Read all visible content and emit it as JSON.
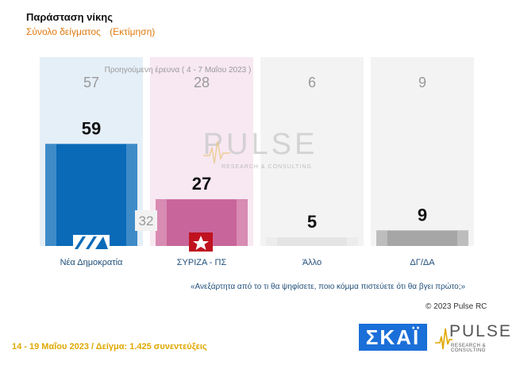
{
  "header": {
    "title": "Παράσταση νίκης",
    "subtitle": "Σύνολο δείγματος",
    "subtitle_note": "(Εκτίμηση)"
  },
  "chart_data": {
    "type": "bar",
    "categories": [
      "Νέα Δημοκρατία",
      "ΣΥΡΙΖΑ - ΠΣ",
      "Άλλο",
      "ΔΓ/ΔΑ"
    ],
    "series": [
      {
        "name": "Προηγούμενη έρευνα ( 4 - 7 Μαΐου 2023 )",
        "values": [
          57,
          28,
          6,
          9
        ]
      },
      {
        "name": "",
        "values": [
          59,
          27,
          5,
          9
        ]
      }
    ],
    "colors": [
      "#0a6ab8",
      "#c8659a",
      "#e4e4e4",
      "#a6a6a6"
    ],
    "background_colors": [
      "#e5eff8",
      "#f7e8f1",
      "#f3f3f3",
      "#f3f3f3"
    ],
    "bar_shade_colors": [
      "#3f8bc8",
      "#d88bb3",
      "#ececec",
      "#bdbdbd"
    ],
    "annotation": "32",
    "ylim": [
      0,
      100
    ],
    "legend_note": "Προηγούμενη έρευνα ( 4 - 7 Μαΐου 2023 )"
  },
  "watermark": {
    "word": "PULSE",
    "tagline": "RESEARCH & CONSULTING"
  },
  "question": "«Ανεξάρτητα από το τι θα ψηφίσετε, ποιο κόμμα πιστεύετε ότι θα βγει πρώτο;»",
  "copyright": "© 2023 Pulse RC",
  "footer": "14 - 19  Μαΐου  2023  /  Δείγμα: 1.425 συνεντεύξεις",
  "logos": {
    "broadcaster": "ΣΚΑΪ",
    "pollster": "PULSE",
    "pollster_tagline": "RESEARCH & CONSULTING",
    "party_logos": [
      "nd-logo",
      "syriza-star-logo"
    ]
  }
}
